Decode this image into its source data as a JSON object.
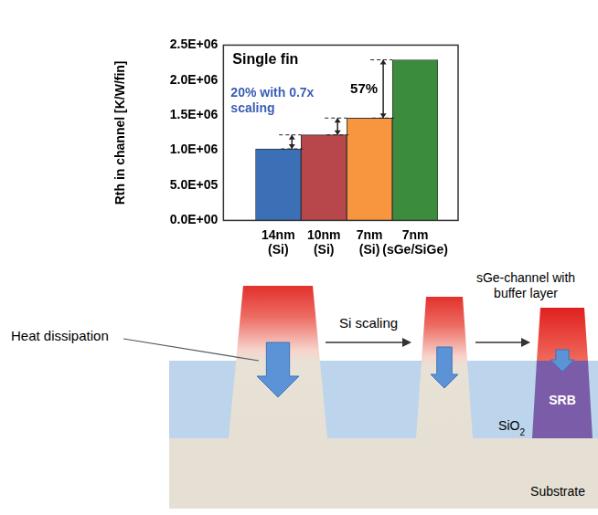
{
  "chart_data": {
    "type": "bar",
    "y_label": "Rth in channel [K/W/fin]",
    "categories": [
      "14nm (Si)",
      "10nm (Si)",
      "7nm (Si)",
      "7nm (sGe/SiGe)"
    ],
    "values": [
      1020000,
      1220000,
      1460000,
      2290000
    ],
    "colors": [
      "#3b6fb6",
      "#b8474b",
      "#f7963f",
      "#3b8c3c"
    ],
    "ylim": [
      0,
      2500000
    ],
    "yticks": [
      {
        "value": 0,
        "label": "0.0E+00"
      },
      {
        "value": 500000,
        "label": "5.0E+05"
      },
      {
        "value": 1000000,
        "label": "1.0E+06"
      },
      {
        "value": 1500000,
        "label": "1.5E+06"
      },
      {
        "value": 2000000,
        "label": "2.0E+06"
      },
      {
        "value": 2500000,
        "label": "2.5E+06"
      }
    ],
    "grid": false,
    "annotations": [
      {
        "text": "Single fin"
      },
      {
        "text": "20% with 0.7x scaling",
        "between": [
          [
            0,
            1
          ],
          [
            1,
            2
          ]
        ],
        "color": "#3a5db5"
      },
      {
        "text": "57%",
        "between": [
          [
            2,
            3
          ]
        ],
        "color": "#000000"
      }
    ]
  },
  "diagram": {
    "heat_label": "Heat dissipation",
    "transitions": [
      "Si scaling",
      "sGe-channel with buffer layer"
    ],
    "buffer_label": "SRB",
    "oxide_label": "SiO2",
    "substrate_label": "Substrate"
  }
}
